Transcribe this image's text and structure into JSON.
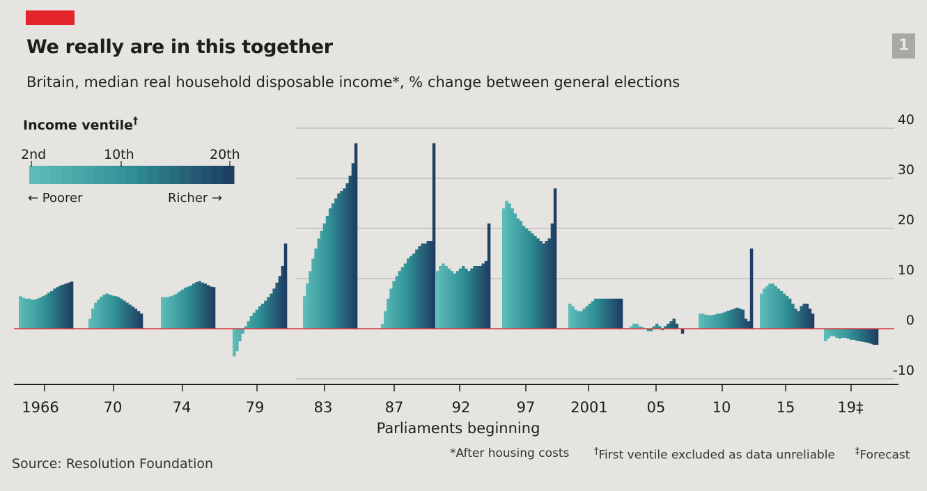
{
  "header": {
    "title": "We really are in this together",
    "subtitle": "Britain, median real household disposable income*, % change between general elections",
    "figure_number": "1"
  },
  "legend": {
    "title": "Income ventile",
    "title_mark": "†",
    "label_low": "2nd",
    "label_mid": "10th",
    "label_high": "20th",
    "poorer": "← Poorer",
    "richer": "Richer →"
  },
  "footer": {
    "source": "Source: Resolution Foundation",
    "note1": "*After housing costs",
    "note2_mark": "†",
    "note2": "First ventile excluded as data unreliable",
    "note3_mark": "‡",
    "note3": "Forecast"
  },
  "colors": {
    "low": "#5cbcb8",
    "mid": "#2f8f95",
    "high": "#1e3f63",
    "zero_line": "#d7383f",
    "grid": "#b8b6b2",
    "axis": "#1d1d1b"
  },
  "chart_data": {
    "type": "bar",
    "title": "We really are in this together",
    "subtitle": "Britain, median real household disposable income*, % change between general elections",
    "xlabel": "Parliaments beginning",
    "ylabel": "",
    "ylim": [
      -10,
      40
    ],
    "yticks": [
      40,
      30,
      20,
      10,
      0,
      -10
    ],
    "grid": true,
    "legend_placement": "top-left",
    "ventiles": [
      "2nd",
      "3rd",
      "4th",
      "5th",
      "6th",
      "7th",
      "8th",
      "9th",
      "10th",
      "11th",
      "12th",
      "13th",
      "14th",
      "15th",
      "16th",
      "17th",
      "18th",
      "19th",
      "20th"
    ],
    "series": [
      {
        "category": "1966",
        "values": [
          6.5,
          6.2,
          6.0,
          6.0,
          5.8,
          5.8,
          6.0,
          6.2,
          6.5,
          6.8,
          7.2,
          7.5,
          8.0,
          8.3,
          8.6,
          8.8,
          9.0,
          9.2,
          9.4
        ]
      },
      {
        "category": "70",
        "values": [
          2.0,
          4.0,
          5.2,
          5.8,
          6.4,
          6.8,
          7.0,
          6.8,
          6.6,
          6.5,
          6.3,
          6.0,
          5.6,
          5.2,
          4.8,
          4.4,
          4.0,
          3.5,
          3.0
        ]
      },
      {
        "category": "74",
        "values": [
          6.3,
          6.3,
          6.3,
          6.5,
          6.7,
          7.0,
          7.4,
          7.8,
          8.2,
          8.4,
          8.6,
          9.0,
          9.3,
          9.5,
          9.2,
          9.0,
          8.7,
          8.4,
          8.3
        ]
      },
      {
        "category": "79",
        "values": [
          -5.5,
          -4.5,
          -2.5,
          -1.0,
          0.5,
          1.5,
          2.5,
          3.2,
          3.8,
          4.5,
          5.0,
          5.6,
          6.3,
          7.0,
          8.0,
          9.2,
          10.5,
          12.5,
          17.0
        ]
      },
      {
        "category": "83",
        "values": [
          6.5,
          9.0,
          11.5,
          14.0,
          16.0,
          18.0,
          19.5,
          21.0,
          22.5,
          24.0,
          25.0,
          26.0,
          27.0,
          27.5,
          28.0,
          29.0,
          30.5,
          33.0,
          37.0
        ]
      },
      {
        "category": "87",
        "values": [
          1.0,
          3.5,
          6.0,
          8.0,
          9.5,
          10.5,
          11.5,
          12.3,
          13.0,
          14.0,
          14.5,
          15.0,
          15.8,
          16.5,
          17.0,
          17.0,
          17.5,
          17.5,
          37.0
        ]
      },
      {
        "category": "92",
        "values": [
          11.5,
          12.5,
          13.0,
          12.5,
          12.0,
          11.5,
          11.0,
          11.5,
          12.0,
          12.5,
          12.0,
          11.5,
          12.0,
          12.5,
          12.5,
          12.5,
          13.0,
          13.5,
          21.0
        ]
      },
      {
        "category": "97",
        "values": [
          24.0,
          25.5,
          25.0,
          24.0,
          23.0,
          22.0,
          21.5,
          20.5,
          20.0,
          19.5,
          19.0,
          18.5,
          18.0,
          17.5,
          17.0,
          17.5,
          18.0,
          21.0,
          28.0
        ]
      },
      {
        "category": "2001",
        "values": [
          5.0,
          4.5,
          3.8,
          3.5,
          3.5,
          4.0,
          4.5,
          5.0,
          5.5,
          6.0,
          6.0,
          6.0,
          6.0,
          6.0,
          6.0,
          6.0,
          6.0,
          6.0,
          6.0
        ]
      },
      {
        "category": "05",
        "values": [
          0.5,
          1.0,
          1.0,
          0.5,
          0.3,
          0.0,
          -0.5,
          -0.5,
          0.5,
          1.0,
          0.5,
          -0.3,
          0.5,
          1.0,
          1.5,
          2.0,
          1.0,
          0.0,
          -1.0
        ]
      },
      {
        "category": "10",
        "values": [
          3.0,
          3.0,
          2.8,
          2.7,
          2.7,
          2.8,
          3.0,
          3.0,
          3.2,
          3.4,
          3.6,
          3.8,
          4.0,
          4.2,
          4.0,
          3.8,
          2.0,
          1.5,
          16.0
        ]
      },
      {
        "category": "15",
        "values": [
          7.0,
          8.0,
          8.5,
          9.0,
          9.0,
          8.5,
          8.0,
          7.5,
          7.0,
          6.5,
          6.0,
          5.0,
          4.0,
          3.5,
          4.5,
          5.0,
          5.0,
          4.0,
          3.0
        ]
      },
      {
        "category": "19‡",
        "values": [
          -2.5,
          -2.0,
          -1.5,
          -1.5,
          -1.8,
          -2.0,
          -1.8,
          -1.8,
          -2.0,
          -2.2,
          -2.2,
          -2.4,
          -2.5,
          -2.6,
          -2.7,
          -2.8,
          -3.0,
          -3.2,
          -3.2
        ]
      }
    ]
  }
}
